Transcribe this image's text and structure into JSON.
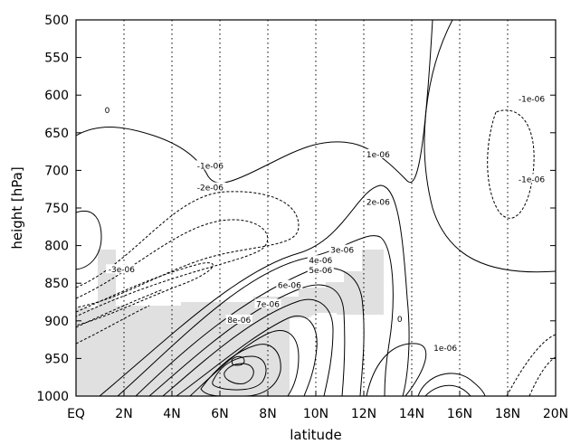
{
  "chart_data": {
    "type": "contour",
    "xlabel": "latitude",
    "ylabel": "height [hPa]",
    "x_ticks": [
      "EQ",
      "2N",
      "4N",
      "6N",
      "8N",
      "10N",
      "12N",
      "14N",
      "16N",
      "18N",
      "20N"
    ],
    "x_tick_values": [
      0,
      2,
      4,
      6,
      8,
      10,
      12,
      14,
      16,
      18,
      20
    ],
    "y_ticks": [
      "500",
      "550",
      "600",
      "650",
      "700",
      "750",
      "800",
      "850",
      "900",
      "950",
      "1000"
    ],
    "y_tick_values": [
      500,
      550,
      600,
      650,
      700,
      750,
      800,
      850,
      900,
      950,
      1000
    ],
    "xlim": [
      0,
      20
    ],
    "ylim": [
      1000,
      500
    ],
    "vertical_dotted_gridlines_at": [
      2,
      4,
      6,
      8,
      10,
      12,
      14,
      16,
      18
    ],
    "contour_labels": [
      {
        "text": "0",
        "x": 1.3,
        "y": 620
      },
      {
        "text": "-1e-06",
        "x": 19.0,
        "y": 605
      },
      {
        "text": "-1e-06",
        "x": 19.0,
        "y": 712
      },
      {
        "text": "-1e-06",
        "x": 5.6,
        "y": 694
      },
      {
        "text": "-2e-06",
        "x": 5.6,
        "y": 723
      },
      {
        "text": "-3e-06",
        "x": 1.9,
        "y": 832
      },
      {
        "text": "1e-06",
        "x": 12.6,
        "y": 679
      },
      {
        "text": "2e-06",
        "x": 12.6,
        "y": 742
      },
      {
        "text": "3e-06",
        "x": 11.1,
        "y": 806
      },
      {
        "text": "4e-06",
        "x": 10.2,
        "y": 820
      },
      {
        "text": "5e-06",
        "x": 10.2,
        "y": 833
      },
      {
        "text": "6e-06",
        "x": 8.9,
        "y": 853
      },
      {
        "text": "7e-06",
        "x": 8.0,
        "y": 878
      },
      {
        "text": "8e-06",
        "x": 6.8,
        "y": 899
      },
      {
        "text": "0",
        "x": 13.5,
        "y": 898
      },
      {
        "text": "1e-06",
        "x": 15.4,
        "y": 936
      }
    ],
    "shaded_region": "grey terrain mask over the lower troposphere, roughly EQ–13N below ~770–850 hPa",
    "colors": {
      "contour": "#000000",
      "terrain": "#e0e0e0",
      "grid": "#000000"
    }
  }
}
